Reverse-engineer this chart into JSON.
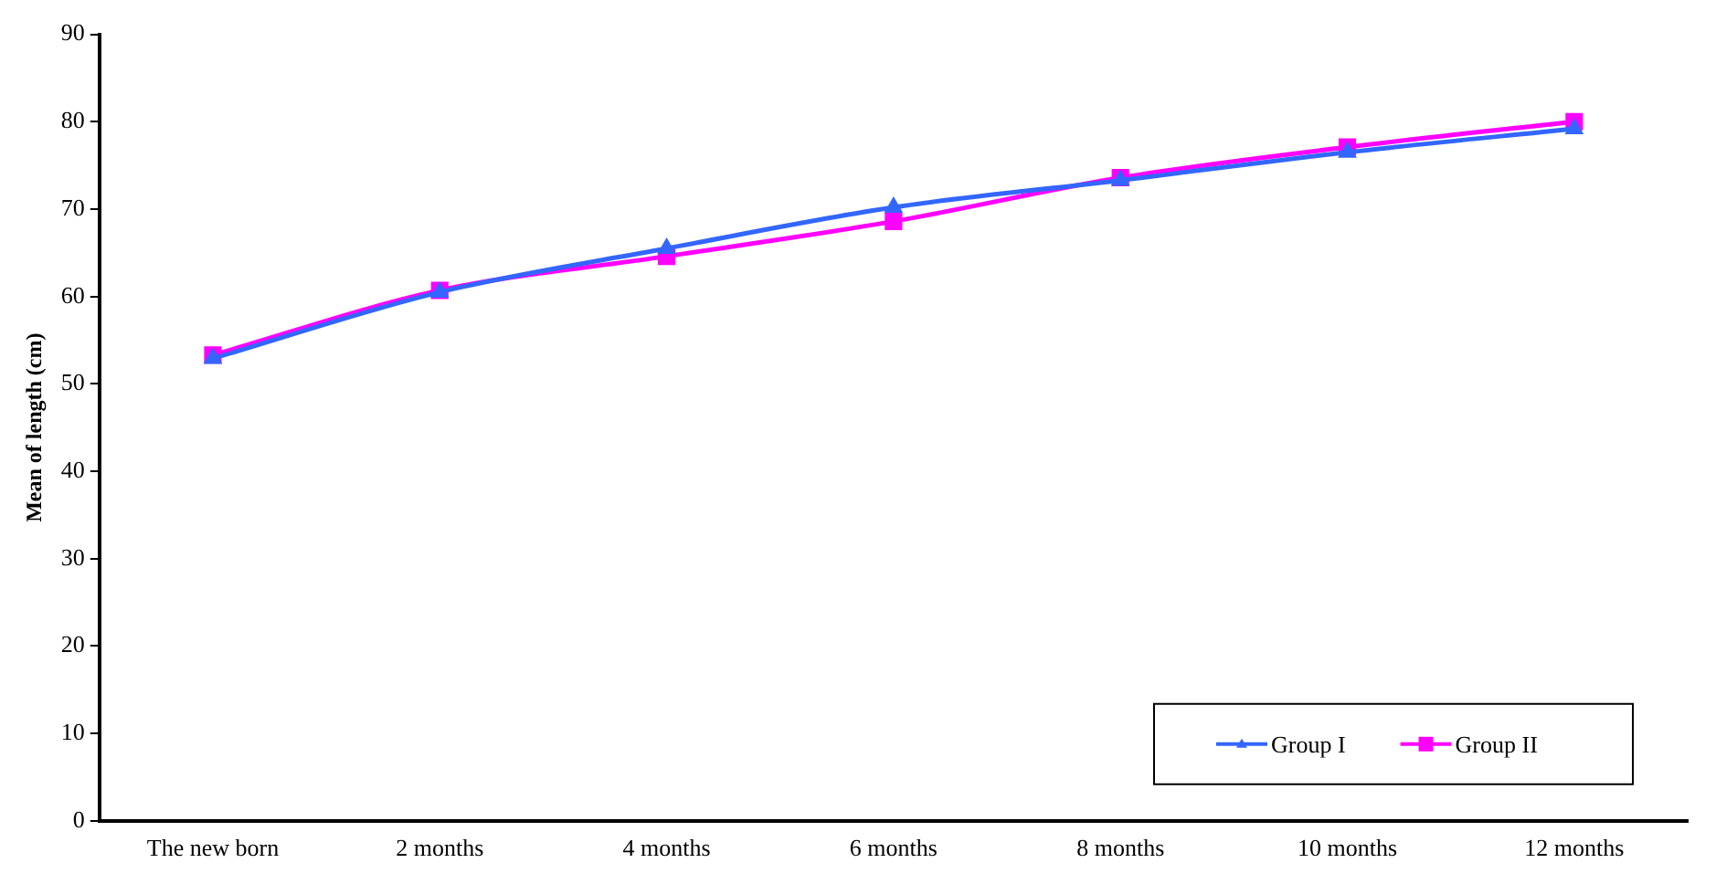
{
  "chart_data": {
    "type": "line",
    "ylabel": "Mean of length (cm)",
    "categories": [
      "The new born",
      "2 months",
      "4 months",
      "6 months",
      "8 months",
      "10 months",
      "12 months"
    ],
    "series": [
      {
        "name": "Group I",
        "color": "#3366ff",
        "marker": "triangle",
        "values": [
          52.9,
          60.5,
          65.5,
          70.2,
          73.3,
          76.5,
          79.2
        ]
      },
      {
        "name": "Group II",
        "color": "#ff00ff",
        "marker": "square",
        "values": [
          53.3,
          60.7,
          64.6,
          68.6,
          73.6,
          77.1,
          80.0
        ]
      }
    ],
    "ylim": [
      0,
      90
    ],
    "yticks": [
      0,
      10,
      20,
      30,
      40,
      50,
      60,
      70,
      80,
      90
    ],
    "grid": false,
    "legend": "bottom right"
  }
}
